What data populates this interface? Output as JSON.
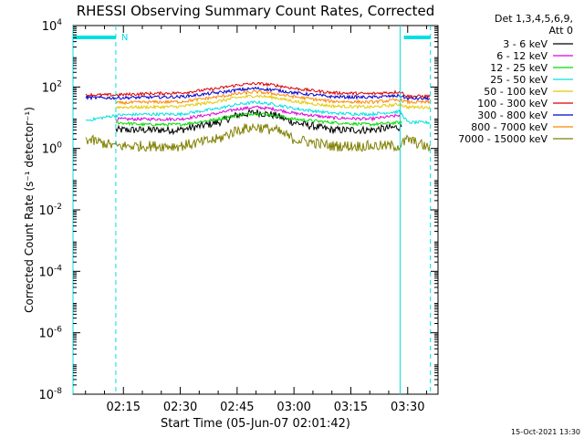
{
  "chart_data": {
    "type": "line",
    "title": "RHESSI Observing Summary Count Rates, Corrected",
    "xlabel": "Start Time (05-Jun-07 02:01:42)",
    "ylabel": "Corrected Count Rate (s⁻¹ detector⁻¹)",
    "y_scale": "log",
    "ylim": [
      1e-08,
      10000
    ],
    "y_ticks": [
      {
        "base": "10",
        "exp": "-8",
        "value": 1e-08
      },
      {
        "base": "10",
        "exp": "-6",
        "value": 1e-06
      },
      {
        "base": "10",
        "exp": "-4",
        "value": 0.0001
      },
      {
        "base": "10",
        "exp": "-2",
        "value": 0.01
      },
      {
        "base": "10",
        "exp": "0",
        "value": 1
      },
      {
        "base": "10",
        "exp": "2",
        "value": 100
      },
      {
        "base": "10",
        "exp": "4",
        "value": 10000
      }
    ],
    "xlim": [
      "02:01:42",
      "03:38:00"
    ],
    "x_ticks": [
      "02:15",
      "02:30",
      "02:45",
      "03:00",
      "03:15",
      "03:30"
    ],
    "legend": {
      "placement": "right",
      "header": [
        "Det 1,3,4,5,6,9,",
        "Att 0"
      ],
      "entries": [
        {
          "label": "3 - 6 keV",
          "color": "#000000"
        },
        {
          "label": "6 - 12 keV",
          "color": "#dd00dd"
        },
        {
          "label": "12 - 25 keV",
          "color": "#00dd00"
        },
        {
          "label": "25 - 50 keV",
          "color": "#00e0e0"
        },
        {
          "label": "50 - 100 keV",
          "color": "#e6c800"
        },
        {
          "label": "100 - 300 keV",
          "color": "#dd0000"
        },
        {
          "label": "300 - 800 keV",
          "color": "#0000cc"
        },
        {
          "label": "800 - 7000 keV",
          "color": "#ff8800"
        },
        {
          "label": "7000 - 15000 keV",
          "color": "#808000"
        }
      ]
    },
    "series": [
      {
        "name": "3 - 6 keV",
        "color": "#000000",
        "x": [
          "02:05",
          "02:13",
          "02:20",
          "02:30",
          "02:40",
          "02:45",
          "02:50",
          "02:55",
          "03:00",
          "03:10",
          "03:20",
          "03:28",
          "03:30",
          "03:36"
        ],
        "y": [
          null,
          4,
          4,
          4,
          7,
          12,
          15,
          12,
          7,
          4,
          4,
          5,
          null,
          null
        ]
      },
      {
        "name": "6 - 12 keV",
        "color": "#dd00dd",
        "x": [
          "02:05",
          "02:13",
          "02:20",
          "02:30",
          "02:40",
          "02:45",
          "02:50",
          "02:55",
          "03:00",
          "03:10",
          "03:20",
          "03:28",
          "03:30",
          "03:36"
        ],
        "y": [
          null,
          9,
          9,
          9,
          14,
          19,
          22,
          19,
          14,
          10,
          9,
          12,
          null,
          null
        ]
      },
      {
        "name": "12 - 25 keV",
        "color": "#00dd00",
        "x": [
          "02:05",
          "02:13",
          "02:20",
          "02:30",
          "02:40",
          "02:45",
          "02:50",
          "02:55",
          "03:00",
          "03:10",
          "03:20",
          "03:28",
          "03:30",
          "03:36"
        ],
        "y": [
          null,
          7,
          6,
          6,
          9,
          12,
          14,
          12,
          9,
          7,
          6,
          7,
          null,
          null
        ]
      },
      {
        "name": "25 - 50 keV",
        "color": "#00e0e0",
        "x": [
          "02:05",
          "02:13",
          "02:20",
          "02:30",
          "02:40",
          "02:45",
          "02:50",
          "02:55",
          "03:00",
          "03:10",
          "03:20",
          "03:28",
          "03:30",
          "03:36"
        ],
        "y": [
          8,
          12,
          13,
          13,
          20,
          27,
          32,
          27,
          20,
          14,
          13,
          16,
          7,
          7
        ]
      },
      {
        "name": "50 - 100 keV",
        "color": "#e6c800",
        "x": [
          "02:05",
          "02:13",
          "02:20",
          "02:30",
          "02:40",
          "02:45",
          "02:50",
          "02:55",
          "03:00",
          "03:10",
          "03:20",
          "03:28",
          "03:30",
          "03:36"
        ],
        "y": [
          null,
          22,
          22,
          23,
          34,
          45,
          52,
          45,
          34,
          24,
          22,
          27,
          22,
          22
        ]
      },
      {
        "name": "100 - 300 keV",
        "color": "#dd0000",
        "x": [
          "02:05",
          "02:13",
          "02:20",
          "02:30",
          "02:40",
          "02:45",
          "02:50",
          "02:55",
          "03:00",
          "03:10",
          "03:20",
          "03:28",
          "03:30",
          "03:36"
        ],
        "y": [
          55,
          55,
          60,
          64,
          90,
          115,
          130,
          115,
          90,
          65,
          60,
          70,
          50,
          50
        ]
      },
      {
        "name": "300 - 800 keV",
        "color": "#0000cc",
        "x": [
          "02:05",
          "02:13",
          "02:20",
          "02:30",
          "02:40",
          "02:45",
          "02:50",
          "02:55",
          "03:00",
          "03:10",
          "03:20",
          "03:28",
          "03:30",
          "03:36"
        ],
        "y": [
          45,
          44,
          46,
          48,
          65,
          80,
          90,
          80,
          65,
          48,
          46,
          52,
          42,
          42
        ]
      },
      {
        "name": "800 - 7000 keV",
        "color": "#ff8800",
        "x": [
          "02:05",
          "02:13",
          "02:20",
          "02:30",
          "02:40",
          "02:45",
          "02:50",
          "02:55",
          "03:00",
          "03:10",
          "03:20",
          "03:28",
          "03:30",
          "03:36"
        ],
        "y": [
          null,
          30,
          32,
          33,
          48,
          60,
          70,
          60,
          48,
          34,
          32,
          38,
          32,
          32
        ]
      },
      {
        "name": "7000 - 15000 keV",
        "color": "#808000",
        "x": [
          "02:05",
          "02:13",
          "02:20",
          "02:30",
          "02:40",
          "02:45",
          "02:50",
          "02:55",
          "03:00",
          "03:10",
          "03:20",
          "03:28",
          "03:30",
          "03:36"
        ],
        "y": [
          2,
          1.2,
          1.2,
          1.2,
          2,
          4,
          5,
          4,
          2,
          1.2,
          1.2,
          1.2,
          2,
          1
        ]
      }
    ],
    "annotations": [
      {
        "text": "N",
        "color": "#00e0e0"
      }
    ],
    "attenuator_bars": [
      {
        "x": [
          "02:01:42",
          "02:13"
        ],
        "color": "#00e0e0"
      },
      {
        "x": [
          "03:29",
          "03:36"
        ],
        "color": "#00e0e0"
      }
    ],
    "vertical_markers": [
      {
        "x": "02:01:42",
        "style": "solid",
        "color": "#00e0e0"
      },
      {
        "x": "02:13",
        "style": "dashed",
        "color": "#00e0e0"
      },
      {
        "x": "03:28",
        "style": "solid",
        "color": "#00e0e0"
      },
      {
        "x": "03:36",
        "style": "dashed",
        "color": "#00e0e0"
      }
    ],
    "footer": "15-Oct-2021 13:30"
  }
}
